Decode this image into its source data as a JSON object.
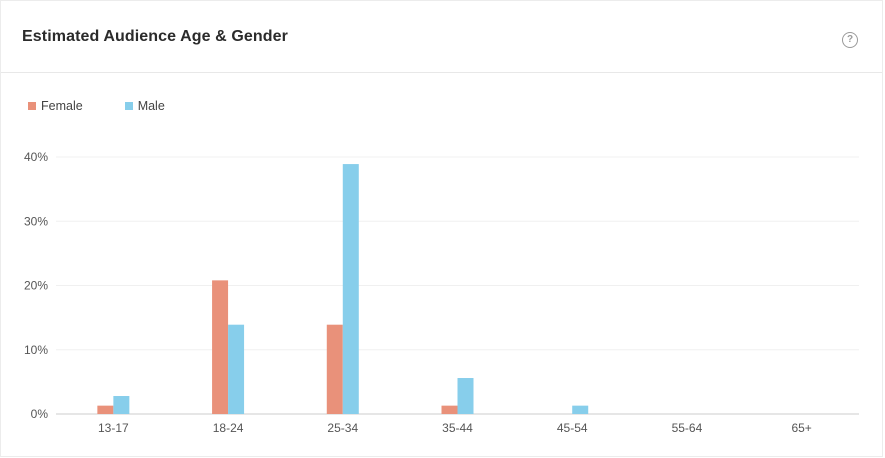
{
  "card": {
    "title": "Estimated Audience Age & Gender",
    "help_icon": "question-circle-icon"
  },
  "chart_data": {
    "type": "bar",
    "categories": [
      "13-17",
      "18-24",
      "25-34",
      "35-44",
      "45-54",
      "55-64",
      "65+"
    ],
    "series": [
      {
        "name": "Female",
        "color": "#e9917a",
        "values": [
          1.3,
          20.8,
          13.9,
          1.3,
          0,
          0,
          0
        ]
      },
      {
        "name": "Male",
        "color": "#87ceeb",
        "values": [
          2.8,
          13.9,
          38.9,
          5.6,
          1.3,
          0,
          0
        ]
      }
    ],
    "ylim": [
      0,
      40
    ],
    "yticks": [
      0,
      10,
      20,
      30,
      40
    ],
    "ytick_labels": [
      "0%",
      "10%",
      "20%",
      "30%",
      "40%"
    ],
    "legend_position": "top-left",
    "grid": true
  }
}
